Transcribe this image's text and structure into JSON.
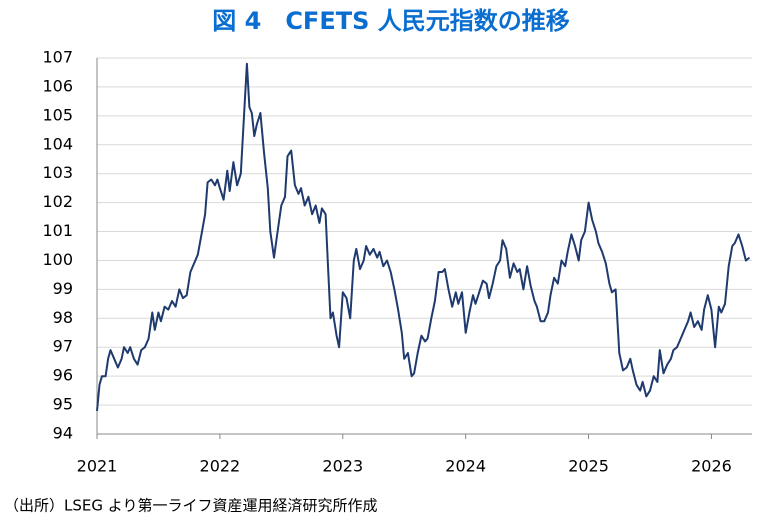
{
  "chart_data": {
    "type": "line",
    "title": "図 4　CFETS 人民元指数の推移",
    "source": "（出所）LSEG より第一ライフ資産運用経済研究所作成",
    "color": "#1f3a6e",
    "grid": true,
    "xlim": [
      2021,
      2026.33
    ],
    "xticks": [
      2021,
      2022,
      2023,
      2024,
      2025,
      2026
    ],
    "ylim": [
      94,
      107
    ],
    "yticks": [
      94,
      95,
      96,
      97,
      98,
      99,
      100,
      101,
      102,
      103,
      104,
      105,
      106,
      107
    ],
    "x": [
      2021.0,
      2021.02,
      2021.04,
      2021.07,
      2021.09,
      2021.11,
      2021.14,
      2021.17,
      2021.2,
      2021.22,
      2021.25,
      2021.27,
      2021.3,
      2021.33,
      2021.36,
      2021.39,
      2021.42,
      2021.45,
      2021.47,
      2021.5,
      2021.52,
      2021.55,
      2021.58,
      2021.61,
      2021.64,
      2021.67,
      2021.7,
      2021.73,
      2021.76,
      2021.79,
      2021.82,
      2021.85,
      2021.88,
      2021.9,
      2021.93,
      2021.96,
      2021.98,
      2022.0,
      2022.03,
      2022.06,
      2022.08,
      2022.11,
      2022.14,
      2022.17,
      2022.19,
      2022.22,
      2022.24,
      2022.26,
      2022.28,
      2022.3,
      2022.33,
      2022.36,
      2022.39,
      2022.41,
      2022.44,
      2022.47,
      2022.5,
      2022.53,
      2022.55,
      2022.58,
      2022.61,
      2022.64,
      2022.66,
      2022.69,
      2022.72,
      2022.75,
      2022.78,
      2022.81,
      2022.83,
      2022.86,
      2022.88,
      2022.9,
      2022.92,
      2022.95,
      2022.97,
      2023.0,
      2023.03,
      2023.06,
      2023.09,
      2023.11,
      2023.14,
      2023.17,
      2023.19,
      2023.22,
      2023.25,
      2023.28,
      2023.3,
      2023.33,
      2023.36,
      2023.39,
      2023.42,
      2023.45,
      2023.48,
      2023.5,
      2023.53,
      2023.56,
      2023.58,
      2023.61,
      2023.64,
      2023.67,
      2023.69,
      2023.72,
      2023.75,
      2023.78,
      2023.81,
      2023.83,
      2023.86,
      2023.89,
      2023.92,
      2023.94,
      2023.97,
      2024.0,
      2024.03,
      2024.06,
      2024.08,
      2024.11,
      2024.14,
      2024.17,
      2024.19,
      2024.22,
      2024.25,
      2024.28,
      2024.3,
      2024.33,
      2024.36,
      2024.39,
      2024.42,
      2024.44,
      2024.47,
      2024.5,
      2024.53,
      2024.56,
      2024.58,
      2024.61,
      2024.64,
      2024.67,
      2024.69,
      2024.72,
      2024.75,
      2024.78,
      2024.81,
      2024.83,
      2024.86,
      2024.89,
      2024.92,
      2024.94,
      2024.97,
      2025.0,
      2025.03,
      2025.06,
      2025.08,
      2025.11,
      2025.14,
      2025.17,
      2025.19,
      2025.22,
      2025.25,
      2025.28,
      2025.31,
      2025.34,
      2025.36,
      2025.39,
      2025.42,
      2025.44,
      2025.47,
      2025.5,
      2025.53,
      2025.56,
      2025.58,
      2025.61,
      2025.64,
      2025.67,
      2025.69,
      2025.72,
      2025.75,
      2025.78,
      2025.81,
      2025.83,
      2025.86,
      2025.89,
      2025.92,
      2025.94,
      2025.97,
      2026.0,
      2026.03,
      2026.06,
      2026.08,
      2026.11,
      2026.14,
      2026.17,
      2026.19,
      2026.22,
      2026.25,
      2026.28,
      2026.31
    ],
    "values": [
      94.8,
      95.7,
      96.0,
      96.0,
      96.6,
      96.9,
      96.6,
      96.3,
      96.6,
      97.0,
      96.8,
      97.0,
      96.6,
      96.4,
      96.9,
      97.0,
      97.3,
      98.2,
      97.6,
      98.2,
      97.9,
      98.4,
      98.3,
      98.6,
      98.4,
      99.0,
      98.7,
      98.8,
      99.6,
      99.9,
      100.2,
      100.9,
      101.6,
      102.7,
      102.8,
      102.6,
      102.8,
      102.5,
      102.1,
      103.1,
      102.4,
      103.4,
      102.6,
      103.0,
      104.5,
      106.8,
      105.3,
      105.1,
      104.3,
      104.7,
      105.1,
      103.7,
      102.5,
      101.0,
      100.1,
      101.0,
      101.9,
      102.2,
      103.6,
      103.8,
      102.6,
      102.3,
      102.5,
      101.9,
      102.2,
      101.6,
      101.9,
      101.3,
      101.8,
      101.6,
      99.8,
      98.0,
      98.2,
      97.4,
      97.0,
      98.9,
      98.7,
      98.0,
      100.0,
      100.4,
      99.7,
      100.0,
      100.5,
      100.2,
      100.4,
      100.1,
      100.3,
      99.8,
      100.0,
      99.6,
      99.0,
      98.3,
      97.5,
      96.6,
      96.8,
      96.0,
      96.1,
      96.8,
      97.4,
      97.2,
      97.3,
      98.0,
      98.6,
      99.6,
      99.6,
      99.7,
      99.0,
      98.4,
      98.9,
      98.5,
      98.9,
      97.5,
      98.2,
      98.8,
      98.5,
      98.9,
      99.3,
      99.2,
      98.7,
      99.2,
      99.8,
      100.0,
      100.7,
      100.4,
      99.4,
      99.9,
      99.6,
      99.7,
      99.0,
      99.8,
      99.1,
      98.6,
      98.4,
      97.9,
      97.9,
      98.2,
      98.8,
      99.4,
      99.2,
      100.0,
      99.8,
      100.3,
      100.9,
      100.5,
      100.0,
      100.7,
      101.0,
      102.0,
      101.4,
      101.0,
      100.6,
      100.3,
      99.9,
      99.2,
      98.9,
      99.0,
      96.8,
      96.2,
      96.3,
      96.6,
      96.2,
      95.7,
      95.5,
      95.8,
      95.3,
      95.5,
      96.0,
      95.8,
      96.9,
      96.1,
      96.4,
      96.6,
      96.9,
      97.0,
      97.3,
      97.6,
      97.9,
      98.2,
      97.7,
      97.9,
      97.6,
      98.3,
      98.8,
      98.3,
      97.0,
      98.4,
      98.2,
      98.5,
      99.8,
      100.5,
      100.6,
      100.9,
      100.5,
      100.0,
      100.1
    ]
  }
}
